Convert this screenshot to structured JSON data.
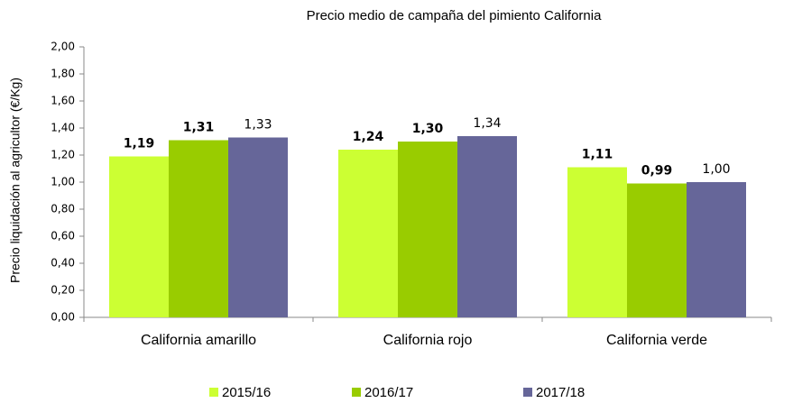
{
  "chart_data": {
    "type": "bar",
    "title": "Precio medio de campaña  del pimiento California",
    "y_label": "Precio liquidación al agricultor (€/Kg)",
    "categories": [
      "California amarillo",
      "California rojo",
      "California verde"
    ],
    "series": [
      {
        "name": "2015/16",
        "color": "#ccff33",
        "label_weight": "bold",
        "values": [
          1.19,
          1.24,
          1.11
        ],
        "value_labels": [
          "1,19",
          "1,24",
          "1,11"
        ]
      },
      {
        "name": "2016/17",
        "color": "#99cc00",
        "label_weight": "bold",
        "values": [
          1.31,
          1.3,
          0.99
        ],
        "value_labels": [
          "1,31",
          "1,30",
          "0,99"
        ]
      },
      {
        "name": "2017/18",
        "color": "#666699",
        "label_weight": "normal",
        "values": [
          1.33,
          1.34,
          1.0
        ],
        "value_labels": [
          "1,33",
          "1,34",
          "1,00"
        ]
      }
    ],
    "ylim": [
      0,
      2
    ],
    "yticks": [
      {
        "value": 0,
        "label": "0,00"
      },
      {
        "value": 0.2,
        "label": "0,20"
      },
      {
        "value": 0.4,
        "label": "0,40"
      },
      {
        "value": 0.6,
        "label": "0,60"
      },
      {
        "value": 0.8,
        "label": "0,80"
      },
      {
        "value": 1.0,
        "label": "1,00"
      },
      {
        "value": 1.2,
        "label": "1,20"
      },
      {
        "value": 1.4,
        "label": "1,40"
      },
      {
        "value": 1.6,
        "label": "1,60"
      },
      {
        "value": 1.8,
        "label": "1,80"
      },
      {
        "value": 2.0,
        "label": "2,00"
      }
    ],
    "grid": false,
    "legend": "bottom"
  }
}
